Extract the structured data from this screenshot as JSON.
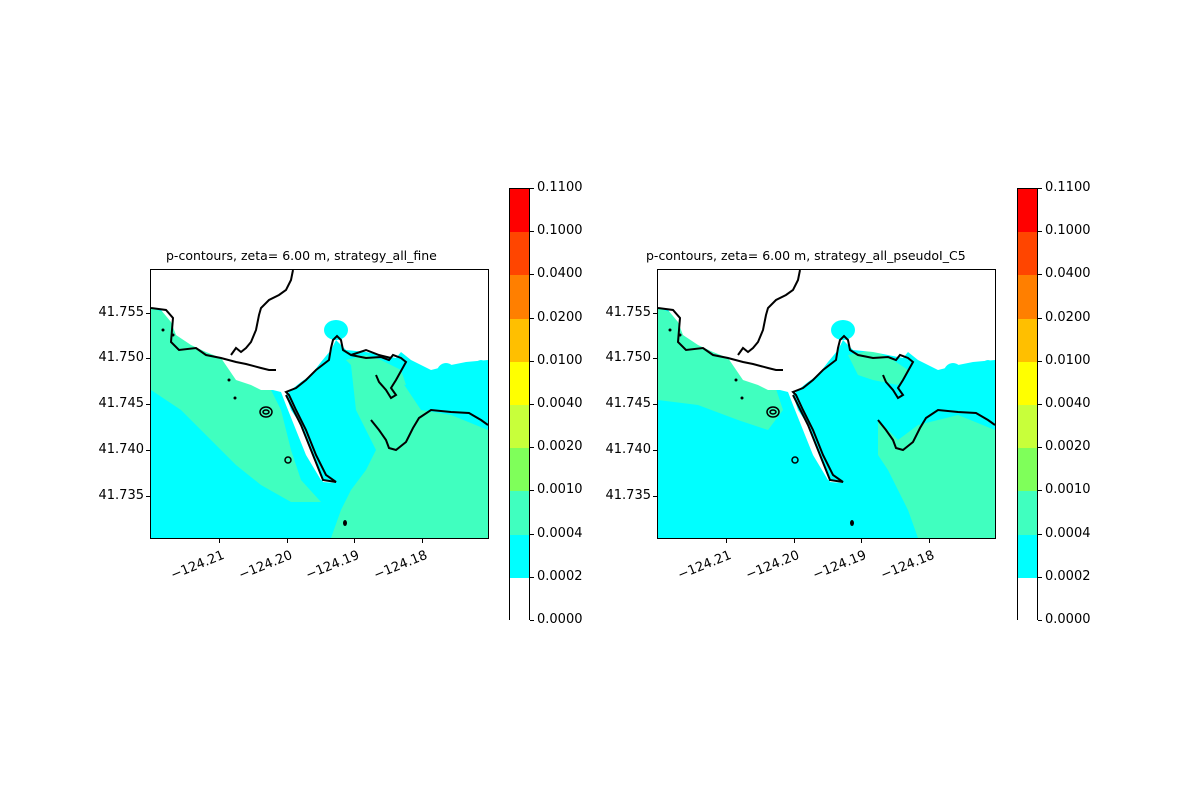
{
  "panels": [
    {
      "title": "p-contours, zeta= 6.00 m, strategy_all_fine",
      "variant": "fine"
    },
    {
      "title": "p-contours, zeta= 6.00 m, strategy_all_pseudoI_C5",
      "variant": "pseudo"
    }
  ],
  "y_ticks": [
    "41.755",
    "41.750",
    "41.745",
    "41.740",
    "41.735"
  ],
  "x_ticks": [
    "−124.21",
    "−124.20",
    "−124.19",
    "−124.18"
  ],
  "colorbar": {
    "levels": [
      "0.1100",
      "0.1000",
      "0.0400",
      "0.0200",
      "0.0100",
      "0.0040",
      "0.0020",
      "0.0010",
      "0.0004",
      "0.0002",
      "0.0000"
    ],
    "colors": [
      "#ff0000",
      "#ff4500",
      "#ff7f00",
      "#ffbf00",
      "#ffff00",
      "#c8ff3a",
      "#7fff5a",
      "#40ffbf",
      "#00ffff",
      "#ffffff"
    ]
  },
  "map_colors": {
    "deep": "#00ffff",
    "shallow": "#40ffbf",
    "land": "#ffffff",
    "coast": "#000000"
  }
}
